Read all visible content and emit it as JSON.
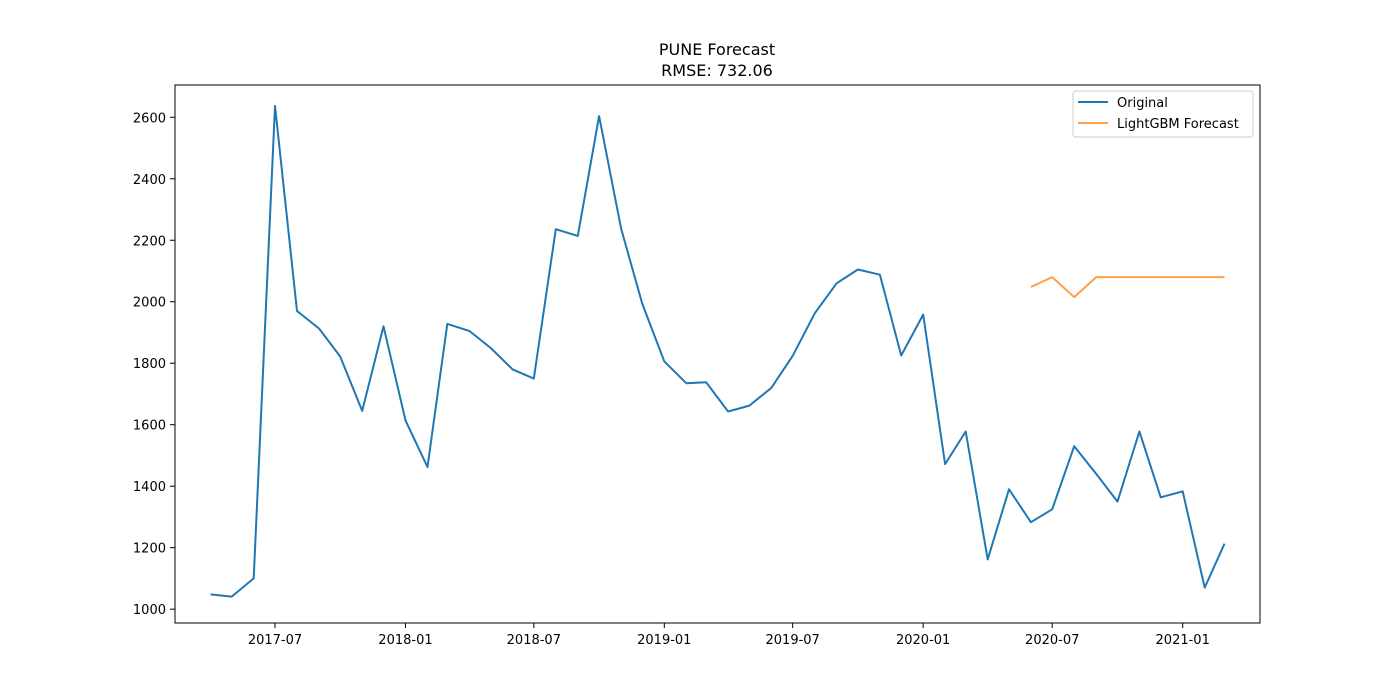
{
  "chart_data": {
    "type": "line",
    "title": "PUNE Forecast",
    "subtitle": "RMSE: 732.06",
    "xlabel": "",
    "ylabel": "",
    "x_ticks": [
      "2017-07",
      "2018-01",
      "2018-07",
      "2019-01",
      "2019-07",
      "2020-01",
      "2020-07",
      "2021-01"
    ],
    "y_ticks": [
      1000,
      1200,
      1400,
      1600,
      1800,
      2000,
      2200,
      2400,
      2600
    ],
    "xlim": [
      "2017-02-10",
      "2021-04-20"
    ],
    "ylim": [
      955,
      2705
    ],
    "grid": false,
    "legend_position": "top-right",
    "series": [
      {
        "name": "Original",
        "color": "#1f77b4",
        "points": [
          [
            "2017-04-01",
            1048
          ],
          [
            "2017-05-01",
            1041
          ],
          [
            "2017-06-01",
            1100
          ],
          [
            "2017-07-01",
            2637
          ],
          [
            "2017-08-01",
            1970
          ],
          [
            "2017-09-01",
            1913
          ],
          [
            "2017-10-01",
            1822
          ],
          [
            "2017-11-01",
            1645
          ],
          [
            "2017-12-01",
            1920
          ],
          [
            "2018-01-01",
            1614
          ],
          [
            "2018-02-01",
            1462
          ],
          [
            "2018-03-01",
            1928
          ],
          [
            "2018-04-01",
            1905
          ],
          [
            "2018-05-01",
            1850
          ],
          [
            "2018-06-01",
            1780
          ],
          [
            "2018-07-01",
            1750
          ],
          [
            "2018-08-01",
            2236
          ],
          [
            "2018-09-01",
            2214
          ],
          [
            "2018-10-01",
            2604
          ],
          [
            "2018-11-01",
            2238
          ],
          [
            "2018-12-01",
            1993
          ],
          [
            "2019-01-01",
            1806
          ],
          [
            "2019-02-01",
            1735
          ],
          [
            "2019-03-01",
            1738
          ],
          [
            "2019-04-01",
            1643
          ],
          [
            "2019-05-01",
            1662
          ],
          [
            "2019-06-01",
            1720
          ],
          [
            "2019-07-01",
            1824
          ],
          [
            "2019-08-01",
            1962
          ],
          [
            "2019-09-01",
            2060
          ],
          [
            "2019-10-01",
            2105
          ],
          [
            "2019-11-01",
            2088
          ],
          [
            "2019-12-01",
            1825
          ],
          [
            "2020-01-01",
            1958
          ],
          [
            "2020-02-01",
            1472
          ],
          [
            "2020-03-01",
            1578
          ],
          [
            "2020-04-01",
            1162
          ],
          [
            "2020-05-01",
            1390
          ],
          [
            "2020-06-01",
            1283
          ],
          [
            "2020-07-01",
            1325
          ],
          [
            "2020-08-01",
            1530
          ],
          [
            "2020-09-01",
            1440
          ],
          [
            "2020-10-01",
            1350
          ],
          [
            "2020-11-01",
            1578
          ],
          [
            "2020-12-01",
            1364
          ],
          [
            "2021-01-01",
            1383
          ],
          [
            "2021-02-01",
            1070
          ],
          [
            "2021-03-01",
            1213
          ]
        ]
      },
      {
        "name": "LightGBM Forecast",
        "color": "#ff7f0e",
        "points": [
          [
            "2020-06-01",
            2048
          ],
          [
            "2020-07-01",
            2080
          ],
          [
            "2020-08-01",
            2015
          ],
          [
            "2020-09-01",
            2080
          ],
          [
            "2020-10-01",
            2080
          ],
          [
            "2020-11-01",
            2080
          ],
          [
            "2020-12-01",
            2080
          ],
          [
            "2021-01-01",
            2080
          ],
          [
            "2021-02-01",
            2080
          ],
          [
            "2021-03-01",
            2080
          ]
        ]
      }
    ]
  }
}
